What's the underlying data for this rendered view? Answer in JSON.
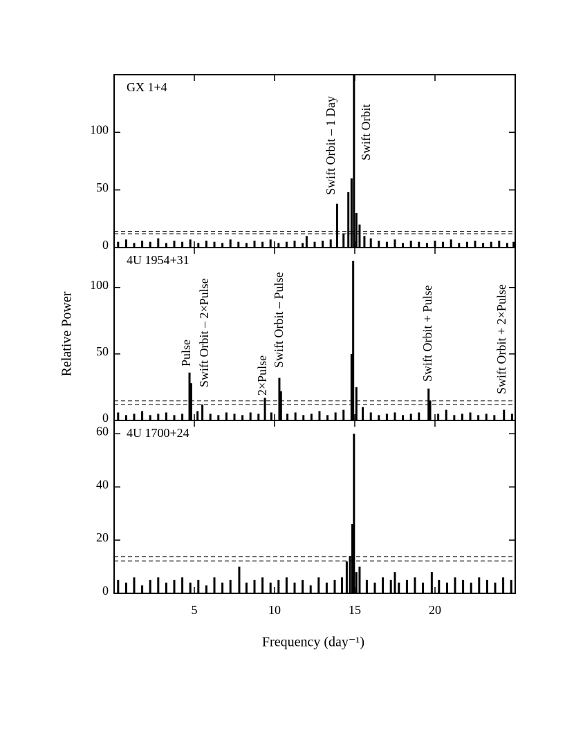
{
  "chart_data": [
    {
      "type": "stem",
      "label": "GX 1+4",
      "color": "#000000",
      "xlim": [
        0,
        25
      ],
      "ylim": [
        0,
        150
      ],
      "yticks": [
        0,
        50,
        100
      ],
      "xticks": [
        5,
        10,
        15,
        20
      ],
      "thresholds": [
        12,
        14
      ],
      "annotations": [
        "Swift Orbit – 1 Day",
        "Swift Orbit"
      ],
      "x": [
        0.25,
        0.75,
        1.25,
        1.75,
        2.25,
        2.75,
        3.25,
        3.75,
        4.25,
        4.75,
        5.25,
        5.75,
        6.25,
        6.75,
        7.25,
        7.75,
        8.25,
        8.75,
        9.25,
        9.75,
        10.25,
        10.75,
        11.25,
        11.75,
        12.0,
        12.5,
        13.0,
        13.5,
        13.9,
        14.3,
        14.6,
        14.8,
        14.95,
        15.1,
        15.3,
        15.6,
        16.0,
        16.5,
        17.0,
        17.5,
        18.0,
        18.5,
        19.0,
        19.5,
        20.0,
        20.5,
        21.0,
        21.5,
        22.0,
        22.5,
        23.0,
        23.5,
        24.0,
        24.5,
        24.9
      ],
      "y": [
        5,
        7,
        4,
        6,
        5,
        8,
        4,
        6,
        5,
        7,
        4,
        6,
        5,
        4,
        7,
        5,
        4,
        6,
        5,
        7,
        4,
        5,
        6,
        4,
        10,
        5,
        6,
        7,
        38,
        12,
        48,
        60,
        150,
        30,
        20,
        10,
        8,
        6,
        5,
        7,
        4,
        6,
        5,
        4,
        6,
        5,
        7,
        4,
        5,
        6,
        4,
        5,
        6,
        4,
        5
      ]
    },
    {
      "type": "stem",
      "label": "4U 1954+31",
      "ylabel": "Relative Power",
      "color": "#000000",
      "xlim": [
        0,
        25
      ],
      "ylim": [
        0,
        130
      ],
      "yticks": [
        0,
        50,
        100
      ],
      "xticks": [
        5,
        10,
        15,
        20
      ],
      "thresholds": [
        12,
        14.7
      ],
      "annotations": [
        "Pulse",
        "Swift Orbit – 2×Pulse",
        "2×Pulse",
        "Swift Orbit – Pulse",
        "Swift Orbit + Pulse",
        "Swift Orbit + 2×Pulse"
      ],
      "x": [
        0.25,
        0.75,
        1.25,
        1.75,
        2.25,
        2.75,
        3.25,
        3.75,
        4.25,
        4.7,
        4.8,
        5.2,
        5.5,
        6.0,
        6.5,
        7.0,
        7.5,
        8.0,
        8.5,
        9.0,
        9.4,
        9.8,
        10.3,
        10.4,
        10.8,
        11.3,
        11.8,
        12.3,
        12.8,
        13.3,
        13.8,
        14.3,
        14.8,
        14.9,
        15.1,
        15.5,
        16.0,
        16.5,
        17.0,
        17.5,
        18.0,
        18.5,
        19.0,
        19.6,
        19.7,
        20.2,
        20.7,
        21.2,
        21.7,
        22.2,
        22.7,
        23.2,
        23.7,
        24.3,
        24.8
      ],
      "y": [
        6,
        4,
        5,
        7,
        4,
        5,
        6,
        4,
        5,
        36,
        28,
        7,
        12,
        5,
        4,
        6,
        5,
        4,
        6,
        5,
        17,
        6,
        32,
        22,
        5,
        6,
        4,
        5,
        7,
        4,
        6,
        8,
        50,
        120,
        25,
        10,
        6,
        4,
        5,
        6,
        4,
        5,
        6,
        24,
        15,
        5,
        8,
        4,
        5,
        6,
        4,
        5,
        4,
        8,
        5
      ]
    },
    {
      "type": "stem",
      "label": "4U 1700+24",
      "xlabel": "Frequency (day⁻¹)",
      "color": "#000000",
      "xlim": [
        0,
        25
      ],
      "ylim": [
        0,
        65
      ],
      "yticks": [
        0,
        20,
        40,
        60
      ],
      "xticks": [
        5,
        10,
        15,
        20
      ],
      "thresholds": [
        12.2,
        13.8
      ],
      "annotations": [],
      "x": [
        0.25,
        0.75,
        1.25,
        1.75,
        2.25,
        2.75,
        3.25,
        3.75,
        4.25,
        4.75,
        5.25,
        5.75,
        6.25,
        6.75,
        7.25,
        7.8,
        8.25,
        8.75,
        9.25,
        9.75,
        10.25,
        10.75,
        11.25,
        11.75,
        12.25,
        12.75,
        13.25,
        13.75,
        14.2,
        14.5,
        14.7,
        14.85,
        14.95,
        15.1,
        15.3,
        15.75,
        16.25,
        16.75,
        17.25,
        17.5,
        17.75,
        18.25,
        18.75,
        19.25,
        19.8,
        20.25,
        20.75,
        21.25,
        21.75,
        22.25,
        22.75,
        23.25,
        23.75,
        24.25,
        24.75
      ],
      "y": [
        5,
        4,
        6,
        3,
        5,
        6,
        4,
        5,
        6,
        4,
        5,
        3,
        6,
        4,
        5,
        10,
        4,
        5,
        6,
        4,
        5,
        6,
        4,
        5,
        3,
        6,
        4,
        5,
        6,
        12,
        14,
        26,
        60,
        8,
        10,
        5,
        4,
        6,
        5,
        8,
        4,
        5,
        6,
        4,
        8,
        5,
        4,
        6,
        5,
        4,
        6,
        5,
        4,
        6,
        5
      ]
    }
  ]
}
